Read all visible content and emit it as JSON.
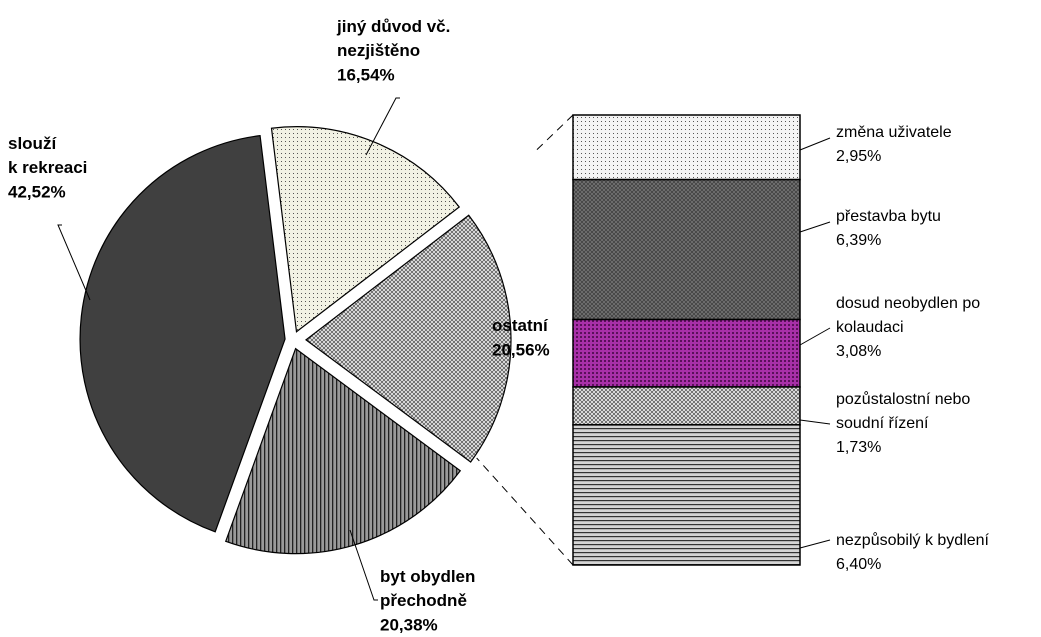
{
  "chart_data": [
    {
      "type": "pie",
      "categories": [
        "jiný důvod vč. nezjištěno",
        "ostatní",
        "byt obydlen přechodně",
        "slouží k rekreaci"
      ],
      "values": [
        16.54,
        20.56,
        20.38,
        42.52
      ],
      "value_labels": [
        "16,54%",
        "20,56%",
        "20,38%",
        "42,52%"
      ],
      "colors": [
        "#f2f2e4",
        "#e4e4e4",
        "#9a9a9a",
        "#404040"
      ]
    },
    {
      "type": "bar",
      "categories": [
        "změna uživatele",
        "přestavba bytu",
        "dosud neobydlen po kolaudaci",
        "pozůstalostní nebo soudní řízení",
        "nezpůsobilý k bydlení"
      ],
      "values": [
        2.95,
        6.39,
        3.08,
        1.73,
        6.4
      ],
      "value_labels": [
        "2,95%",
        "6,39%",
        "3,08%",
        "1,73%",
        "6,40%"
      ],
      "colors": [
        "#f4f4f4",
        "#707070",
        "#a830a8",
        "#e8e8e8",
        "#d4d4d4"
      ]
    }
  ]
}
